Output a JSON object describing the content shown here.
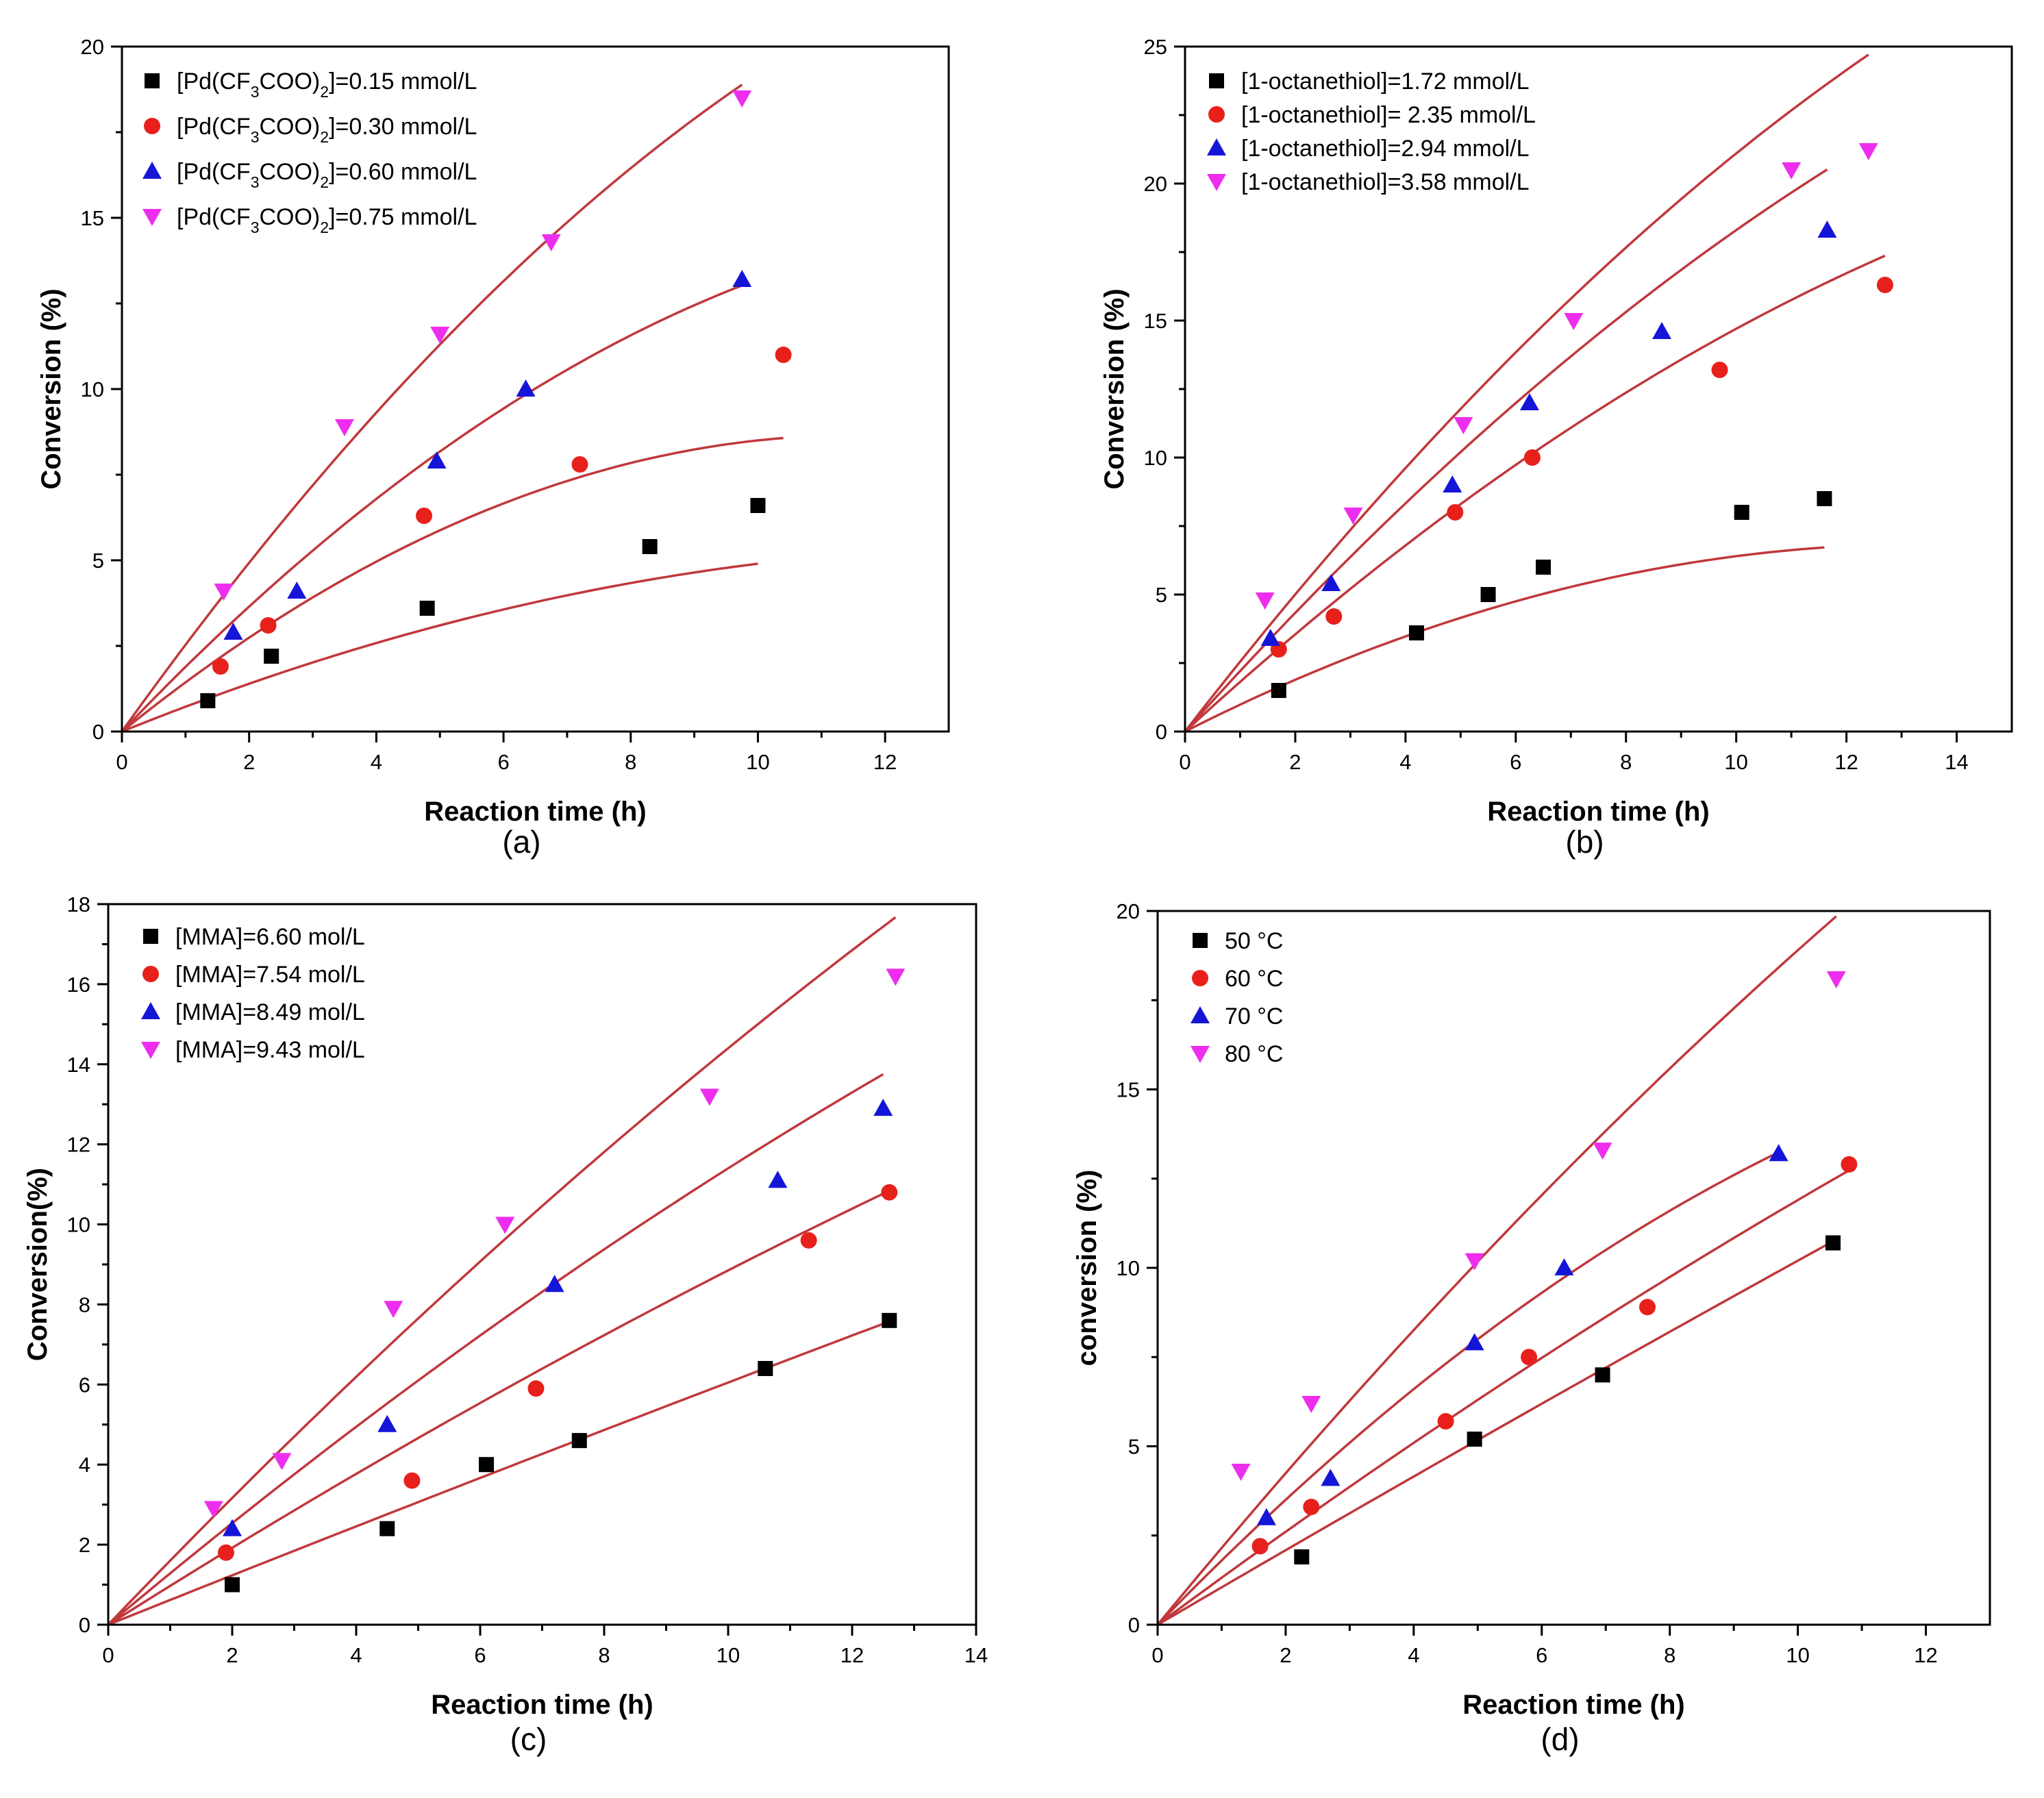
{
  "colors": {
    "square": "#000000",
    "circle": "#e8201c",
    "triangle": "#1515d8",
    "invtriangle": "#ee2eee",
    "fit": "#c0383c"
  },
  "chart_data": [
    {
      "panel": "(a)",
      "type": "scatter",
      "title": "",
      "xlabel": "Reaction time (h)",
      "ylabel": "Conversion (%)",
      "xlim": [
        0,
        13
      ],
      "ylim": [
        0,
        20
      ],
      "xticks": [
        0,
        2,
        4,
        6,
        8,
        10,
        12
      ],
      "yticks": [
        0,
        5,
        10,
        15,
        20
      ],
      "legend": "top-left",
      "series": [
        {
          "name": "[Pd(CF3COO)2]=0.15 mmol/L",
          "label": {
            "pre": "[Pd(CF",
            "s1": "3",
            "mid": "COO)",
            "s2": "2",
            "post": "]=0.15 mmol/L"
          },
          "marker": "square",
          "x": [
            1.35,
            2.35,
            4.8,
            8.3,
            10.0
          ],
          "y": [
            0.9,
            2.2,
            3.6,
            5.4,
            6.6
          ],
          "fit": [
            0.75,
            0.026
          ]
        },
        {
          "name": "[Pd(CF3COO)2]=0.30 mmol/L",
          "label": {
            "pre": "[Pd(CF",
            "s1": "3",
            "mid": "COO)",
            "s2": "2",
            "post": "]=0.30 mmol/L"
          },
          "marker": "circle",
          "x": [
            1.55,
            2.3,
            4.75,
            7.2,
            10.4
          ],
          "y": [
            1.9,
            3.1,
            6.3,
            7.8,
            11.0
          ],
          "fit": [
            1.5,
            0.065
          ]
        },
        {
          "name": "[Pd(CF3COO)2]=0.60 mmol/L",
          "label": {
            "pre": "[Pd(CF",
            "s1": "3",
            "mid": "COO)",
            "s2": "2",
            "post": "]=0.60 mmol/L"
          },
          "marker": "triangle",
          "x": [
            1.75,
            2.75,
            4.95,
            6.35,
            9.75
          ],
          "y": [
            2.9,
            4.1,
            7.9,
            10.0,
            13.2
          ],
          "fit": [
            1.95,
            0.063
          ]
        },
        {
          "name": "[Pd(CF3COO)2]=0.75 mmol/L",
          "label": {
            "pre": "[Pd(CF",
            "s1": "3",
            "mid": "COO)",
            "s2": "2",
            "post": "]=0.75 mmol/L"
          },
          "marker": "invtriangle",
          "x": [
            1.6,
            3.5,
            5.0,
            6.75,
            9.75
          ],
          "y": [
            4.1,
            8.9,
            11.6,
            14.3,
            18.5
          ],
          "fit": [
            2.6,
            0.068
          ]
        }
      ]
    },
    {
      "panel": "(b)",
      "type": "scatter",
      "title": "",
      "xlabel": "Reaction time (h)",
      "ylabel": "Conversion (%)",
      "xlim": [
        0,
        15
      ],
      "ylim": [
        0,
        25
      ],
      "xticks": [
        0,
        2,
        4,
        6,
        8,
        10,
        12,
        14
      ],
      "yticks": [
        0,
        5,
        10,
        15,
        20,
        25
      ],
      "legend": "top-left",
      "series": [
        {
          "name": "[1-octanethiol]=1.72 mmol/L",
          "label": {
            "pre": "[1-octanethiol]=1.72 mmol/L"
          },
          "marker": "square",
          "x": [
            1.7,
            4.2,
            5.5,
            6.5,
            10.1,
            11.6
          ],
          "y": [
            1.5,
            3.6,
            5.0,
            6.0,
            8.0,
            8.5
          ],
          "fit": [
            1.02,
            0.038
          ]
        },
        {
          "name": "[1-octanethiol]= 2.35 mmol/L",
          "label": {
            "pre": "[1-octanethiol]= 2.35 mmol/L"
          },
          "marker": "circle",
          "x": [
            1.7,
            2.7,
            4.9,
            6.3,
            9.7,
            12.7
          ],
          "y": [
            3.0,
            4.2,
            8.0,
            10.0,
            13.2,
            16.3
          ],
          "fit": [
            1.85,
            0.038
          ]
        },
        {
          "name": "[1-octanethiol]=2.94 mmol/L",
          "label": {
            "pre": "[1-octanethiol]=2.94 mmol/L"
          },
          "marker": "triangle",
          "x": [
            1.55,
            2.65,
            4.85,
            6.25,
            8.65,
            11.65
          ],
          "y": [
            3.4,
            5.4,
            9.0,
            12.0,
            14.6,
            18.3
          ],
          "fit": [
            2.25,
            0.042
          ]
        },
        {
          "name": "[1-octanethiol]=3.58 mmol/L",
          "label": {
            "pre": "[1-octanethiol]=3.58 mmol/L"
          },
          "marker": "invtriangle",
          "x": [
            1.45,
            3.05,
            5.05,
            7.05,
            11.0,
            12.4
          ],
          "y": [
            4.8,
            7.9,
            11.2,
            15.0,
            20.5,
            21.2
          ],
          "fit": [
            2.6,
            0.049
          ]
        }
      ]
    },
    {
      "panel": "(c)",
      "type": "scatter",
      "title": "",
      "xlabel": "Reaction time (h)",
      "ylabel": "Conversion(%)",
      "xlim": [
        0,
        14
      ],
      "ylim": [
        0,
        18
      ],
      "xticks": [
        0,
        2,
        4,
        6,
        8,
        10,
        12,
        14
      ],
      "yticks": [
        0,
        2,
        4,
        6,
        8,
        10,
        12,
        14,
        16,
        18
      ],
      "legend": "top-left",
      "series": [
        {
          "name": "[MMA]=6.60 mol/L",
          "label": {
            "pre": "[MMA]=6.60 mol/L"
          },
          "marker": "square",
          "x": [
            2.0,
            4.5,
            6.1,
            7.6,
            10.6,
            12.6
          ],
          "y": [
            1.0,
            2.4,
            4.0,
            4.6,
            6.4,
            7.6
          ],
          "fit": [
            0.62,
            0.0015
          ]
        },
        {
          "name": "[MMA]=7.54 mol/L",
          "label": {
            "pre": "[MMA]=7.54 mol/L"
          },
          "marker": "circle",
          "x": [
            1.9,
            4.9,
            6.9,
            11.3,
            12.6
          ],
          "y": [
            1.8,
            3.6,
            5.9,
            9.6,
            10.8
          ],
          "fit": [
            0.98,
            0.0095
          ]
        },
        {
          "name": "[MMA]=8.49 mol/L",
          "label": {
            "pre": "[MMA]=8.49 mol/L"
          },
          "marker": "triangle",
          "x": [
            2.0,
            4.5,
            7.2,
            10.8,
            12.5
          ],
          "y": [
            2.4,
            5.0,
            8.5,
            11.1,
            12.9
          ],
          "fit": [
            1.3,
            0.016
          ]
        },
        {
          "name": "[MMA]=9.43 mol/L",
          "label": {
            "pre": "[MMA]=9.43 mol/L"
          },
          "marker": "invtriangle",
          "x": [
            1.7,
            2.8,
            4.6,
            6.4,
            9.7,
            12.7
          ],
          "y": [
            2.9,
            4.1,
            7.9,
            10.0,
            13.2,
            16.2
          ],
          "fit": [
            1.62,
            0.018
          ]
        }
      ]
    },
    {
      "panel": "(d)",
      "type": "scatter",
      "title": "",
      "xlabel": "Reaction time (h)",
      "ylabel": "conversion (%)",
      "xlim": [
        0,
        13
      ],
      "ylim": [
        0,
        20
      ],
      "xticks": [
        0,
        2,
        4,
        6,
        8,
        10,
        12
      ],
      "yticks": [
        0,
        5,
        10,
        15,
        20
      ],
      "legend": "top-left",
      "series": [
        {
          "name": "50 °C",
          "label": {
            "pre": "50 °C"
          },
          "marker": "square",
          "x": [
            2.25,
            4.95,
            6.95,
            10.55
          ],
          "y": [
            1.9,
            5.2,
            7.0,
            10.7
          ],
          "fit": [
            1.05,
            0.003
          ]
        },
        {
          "name": "60 °C",
          "label": {
            "pre": "60 °C"
          },
          "marker": "circle",
          "x": [
            1.6,
            2.4,
            4.5,
            5.8,
            7.65,
            10.8
          ],
          "y": [
            2.2,
            3.3,
            5.7,
            7.5,
            8.9,
            12.9
          ],
          "fit": [
            1.33,
            0.014
          ]
        },
        {
          "name": "70 °C",
          "label": {
            "pre": "70 °C"
          },
          "marker": "triangle",
          "x": [
            1.7,
            2.7,
            4.95,
            6.35,
            9.7
          ],
          "y": [
            3.0,
            4.1,
            7.9,
            10.0,
            13.2
          ],
          "fit": [
            1.85,
            0.05
          ]
        },
        {
          "name": "80 °C",
          "label": {
            "pre": "80 °C"
          },
          "marker": "invtriangle",
          "x": [
            1.3,
            2.4,
            4.95,
            6.95,
            10.6
          ],
          "y": [
            4.3,
            6.2,
            10.2,
            13.3,
            18.1
          ],
          "fit": [
            2.18,
            0.029
          ]
        }
      ]
    }
  ]
}
